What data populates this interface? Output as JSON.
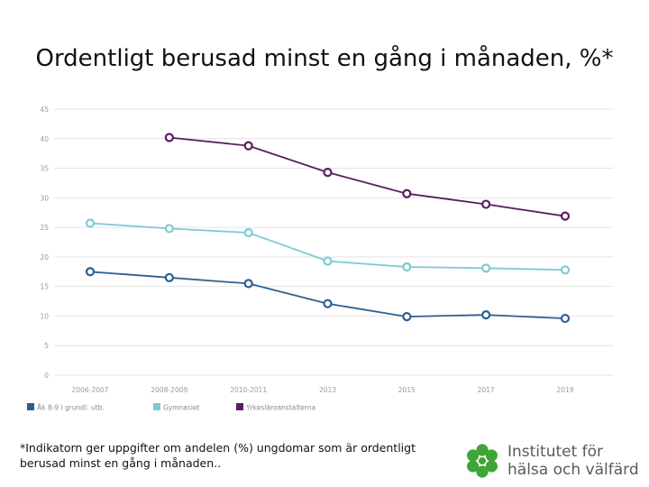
{
  "title": "Ordentligt berusad minst en gång i månaden, %*",
  "footnote": "*Indikatorn ger uppgifter om andelen (%) ungdomar som är ordentligt berusad minst en gång i månaden..",
  "logo": {
    "line1": "Institutet för",
    "line2": "hälsa och välfärd",
    "icon": "flower-logo-icon",
    "color": "#3fa535"
  },
  "chart_data": {
    "type": "line",
    "title": "",
    "xlabel": "",
    "ylabel": "",
    "ylim": [
      0,
      45
    ],
    "yticks": [
      0,
      5,
      10,
      15,
      20,
      25,
      30,
      35,
      40,
      45
    ],
    "grid": true,
    "legend_position": "bottom-left",
    "categories": [
      "2006-2007",
      "2008-2009",
      "2010-2011",
      "2013",
      "2015",
      "2017",
      "2019"
    ],
    "series": [
      {
        "name": "Åk 8-9 i grundl. utb.",
        "color": "#2e5f93",
        "values": [
          17.5,
          16.5,
          15.5,
          12.1,
          9.9,
          10.2,
          9.6
        ]
      },
      {
        "name": "Gymnasiet",
        "color": "#7ecad2",
        "values": [
          25.7,
          24.8,
          24.1,
          19.3,
          18.3,
          18.1,
          17.8
        ]
      },
      {
        "name": "Yrkesläroanstalterna",
        "color": "#5b1f5e",
        "values": [
          null,
          40.2,
          38.8,
          34.3,
          30.7,
          28.9,
          26.9
        ]
      }
    ]
  }
}
